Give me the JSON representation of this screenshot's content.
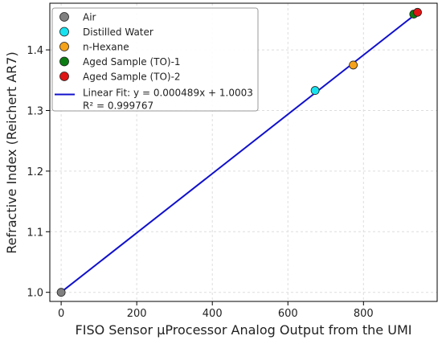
{
  "chart_data": {
    "type": "scatter",
    "xlabel": "FISO Sensor μProcessor Analog Output from the UMI",
    "ylabel": "Refractive Index (Reichert AR7)",
    "xlim": [
      -30,
      995
    ],
    "ylim": [
      0.985,
      1.477
    ],
    "xticks": [
      0,
      200,
      400,
      600,
      800
    ],
    "yticks": [
      1.0,
      1.1,
      1.2,
      1.3,
      1.4
    ],
    "grid": true,
    "legend_position": "top-left",
    "series": [
      {
        "name": "Air",
        "color": "#808080",
        "points": [
          [
            0,
            1.0
          ]
        ]
      },
      {
        "name": "Distilled Water",
        "color": "#17e3f0",
        "points": [
          [
            672,
            1.333
          ]
        ]
      },
      {
        "name": "n-Hexane",
        "color": "#f5a31a",
        "points": [
          [
            773,
            1.375
          ]
        ]
      },
      {
        "name": "Aged Sample (TO)-1",
        "color": "#0b7d12",
        "points": [
          [
            933,
            1.459
          ]
        ]
      },
      {
        "name": "Aged Sample (TO)-2",
        "color": "#e01515",
        "points": [
          [
            943,
            1.462
          ]
        ]
      }
    ],
    "fit": {
      "label_line1": "Linear Fit: y = 0.000489x + 1.0003",
      "label_line2": "R² = 0.999767",
      "slope": 0.000489,
      "intercept": 1.0003,
      "x_range": [
        0,
        943
      ],
      "color": "#1010cc"
    }
  }
}
